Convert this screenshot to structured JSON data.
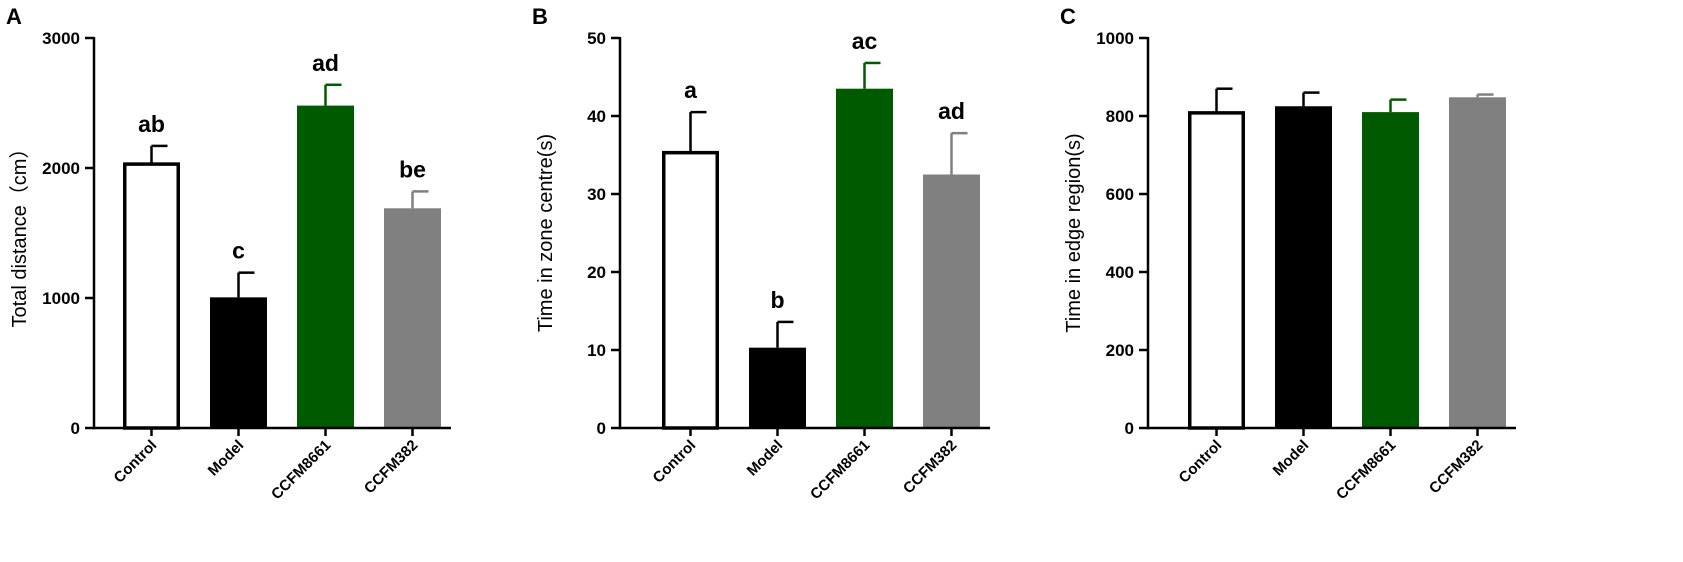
{
  "chart_data": [
    {
      "type": "bar",
      "panel": "A",
      "ylabel": "Total distance（cm）",
      "ylim": [
        0,
        3000
      ],
      "yticks": [
        0,
        1000,
        2000,
        3000
      ],
      "categories": [
        "Control",
        "Model",
        "CCFM8661",
        "CCFM382"
      ],
      "values": [
        2030,
        1005,
        2480,
        1690
      ],
      "errors": [
        140,
        190,
        160,
        130
      ],
      "significance": [
        "ab",
        "c",
        "ad",
        "be"
      ],
      "colors": [
        "#ffffff",
        "#000000",
        "#005a00",
        "#808080"
      ],
      "edge_colors": [
        "#000000",
        "#000000",
        "#005a00",
        "#808080"
      ]
    },
    {
      "type": "bar",
      "panel": "B",
      "ylabel": "Time in zone centre(s)",
      "ylim": [
        0,
        50
      ],
      "yticks": [
        0,
        10,
        20,
        30,
        40,
        50
      ],
      "categories": [
        "Control",
        "Model",
        "CCFM8661",
        "CCFM382"
      ],
      "values": [
        35.3,
        10.3,
        43.5,
        32.5
      ],
      "errors": [
        5.2,
        3.3,
        3.3,
        5.3
      ],
      "significance": [
        "a",
        "b",
        "ac",
        "ad"
      ],
      "colors": [
        "#ffffff",
        "#000000",
        "#005a00",
        "#808080"
      ],
      "edge_colors": [
        "#000000",
        "#000000",
        "#005a00",
        "#808080"
      ]
    },
    {
      "type": "bar",
      "panel": "C",
      "ylabel": "Time in edge region(s)",
      "ylim": [
        0,
        1000
      ],
      "yticks": [
        0,
        200,
        400,
        600,
        800,
        1000
      ],
      "categories": [
        "Control",
        "Model",
        "CCFM8661",
        "CCFM382"
      ],
      "values": [
        808,
        825,
        810,
        848
      ],
      "errors": [
        62,
        35,
        32,
        7
      ],
      "significance": [
        "",
        "",
        "",
        ""
      ],
      "colors": [
        "#ffffff",
        "#000000",
        "#005a00",
        "#808080"
      ],
      "edge_colors": [
        "#000000",
        "#000000",
        "#005a00",
        "#808080"
      ]
    }
  ]
}
